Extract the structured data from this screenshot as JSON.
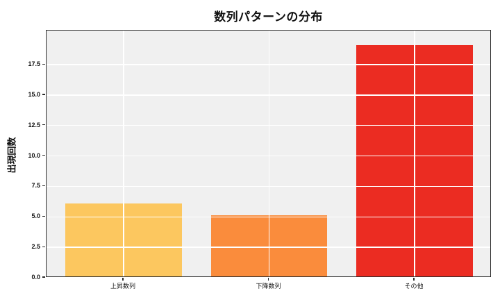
{
  "title": "数列パターンの分布",
  "chart_data": {
    "type": "bar",
    "title": "数列パターンの分布",
    "xlabel": "",
    "ylabel": "出現回数",
    "categories": [
      "上昇数列",
      "下降数列",
      "その他"
    ],
    "values": [
      6,
      5,
      19
    ],
    "bar_colors": [
      "#FCC75F",
      "#FA8C3C",
      "#EB2C22"
    ],
    "bar_width_units": 0.8,
    "ylim": [
      0,
      20.3
    ],
    "yticks": [
      0,
      2.5,
      5,
      7.5,
      10,
      12.5,
      15,
      17.5
    ],
    "ytick_labels": [
      "0.0",
      "2.5",
      "5.0",
      "7.5",
      "10.0",
      "12.5",
      "15.0",
      "17.5"
    ],
    "grid": true,
    "grid_on_top": true,
    "legend": "none",
    "plot_bg_color": "#f0f0f0",
    "grid_color": "#ffffff",
    "spine_color": "#2b2b2b",
    "text_color": "#111111"
  }
}
